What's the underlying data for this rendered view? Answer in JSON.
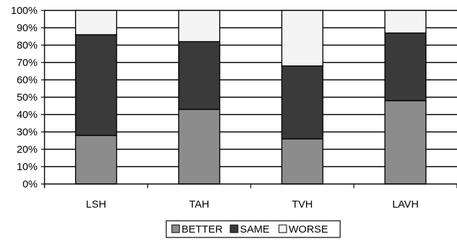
{
  "chart_data": {
    "type": "bar",
    "stacked": true,
    "normalized": true,
    "categories": [
      "LSH",
      "TAH",
      "TVH",
      "LAVH"
    ],
    "series": [
      {
        "name": "BETTER",
        "color": "#8c8c8c",
        "values": [
          28,
          43,
          26,
          48
        ]
      },
      {
        "name": "SAME",
        "color": "#3a3a3a",
        "values": [
          58,
          39,
          42,
          39
        ]
      },
      {
        "name": "WORSE",
        "color": "#f4f4f4",
        "values": [
          14,
          18,
          32,
          13
        ]
      }
    ],
    "y_ticks": [
      "0%",
      "10%",
      "20%",
      "30%",
      "40%",
      "50%",
      "60%",
      "70%",
      "80%",
      "90%",
      "100%"
    ],
    "ylim": [
      0,
      100
    ],
    "title": "",
    "xlabel": "",
    "ylabel": "",
    "grid": true,
    "legend_position": "bottom"
  }
}
